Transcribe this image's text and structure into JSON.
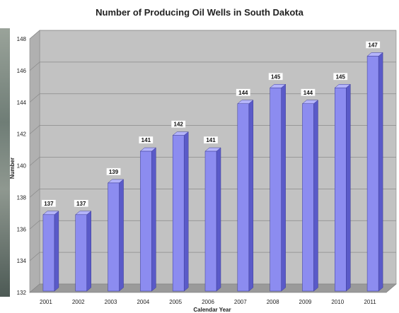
{
  "chart_data": {
    "type": "bar",
    "title": "Number of Producing Oil Wells in South Dakota",
    "xlabel": "Calendar Year",
    "ylabel": "Number",
    "categories": [
      "2001",
      "2002",
      "2003",
      "2004",
      "2005",
      "2006",
      "2007",
      "2008",
      "2009",
      "2010",
      "2011"
    ],
    "values": [
      137,
      137,
      139,
      141,
      142,
      141,
      144,
      145,
      144,
      145,
      147
    ],
    "ylim": [
      132,
      148
    ],
    "yticks": [
      132,
      134,
      136,
      138,
      140,
      142,
      144,
      146,
      148
    ],
    "grid": true,
    "legend": "none",
    "colors": {
      "bar_front": "#8c8cf0",
      "bar_side": "#5a5ac8",
      "bar_top": "#b4b4fa",
      "plot_back": "#c2c2c2",
      "plot_floor": "#9a9a9a",
      "plot_wall": "#b0b0b0"
    }
  }
}
